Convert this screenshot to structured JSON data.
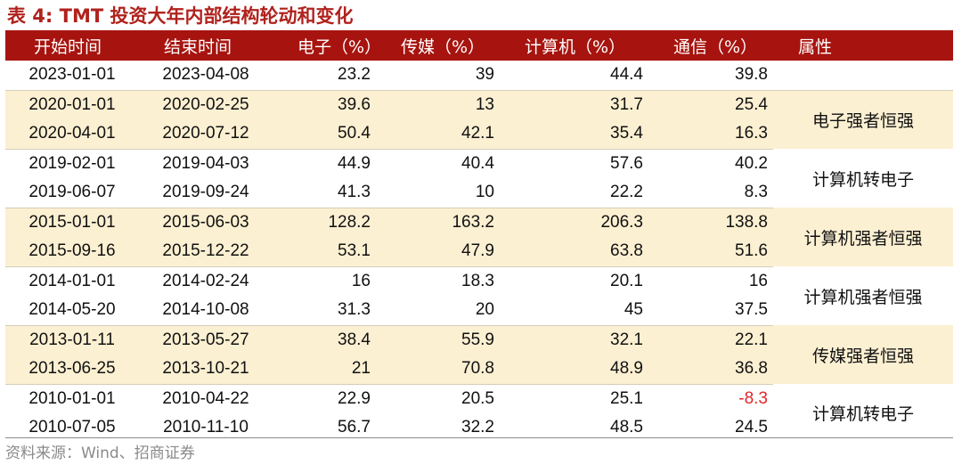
{
  "title": "表 4:  TMT 投资大年内部结构轮动和变化",
  "headers": [
    "开始时间",
    "结束时间",
    "电子（%）",
    "传媒（%）",
    "计算机（%）",
    "通信（%）",
    "属性"
  ],
  "rows": [
    {
      "start": "2023-01-01",
      "end": "2023-04-08",
      "elec": "23.2",
      "media": "39",
      "comp": "44.4",
      "tele": "39.8"
    },
    {
      "start": "2020-01-01",
      "end": "2020-02-25",
      "elec": "39.6",
      "media": "13",
      "comp": "31.7",
      "tele": "25.4"
    },
    {
      "start": "2020-04-01",
      "end": "2020-07-12",
      "elec": "50.4",
      "media": "42.1",
      "comp": "35.4",
      "tele": "16.3"
    },
    {
      "start": "2019-02-01",
      "end": "2019-04-03",
      "elec": "44.9",
      "media": "40.4",
      "comp": "57.6",
      "tele": "40.2"
    },
    {
      "start": "2019-06-07",
      "end": "2019-09-24",
      "elec": "41.3",
      "media": "10",
      "comp": "22.2",
      "tele": "8.3"
    },
    {
      "start": "2015-01-01",
      "end": "2015-06-03",
      "elec": "128.2",
      "media": "163.2",
      "comp": "206.3",
      "tele": "138.8"
    },
    {
      "start": "2015-09-16",
      "end": "2015-12-22",
      "elec": "53.1",
      "media": "47.9",
      "comp": "63.8",
      "tele": "51.6"
    },
    {
      "start": "2014-01-01",
      "end": "2014-02-24",
      "elec": "16",
      "media": "18.3",
      "comp": "20.1",
      "tele": "16"
    },
    {
      "start": "2014-05-20",
      "end": "2014-10-08",
      "elec": "31.3",
      "media": "20",
      "comp": "45",
      "tele": "37.5"
    },
    {
      "start": "2013-01-11",
      "end": "2013-05-27",
      "elec": "38.4",
      "media": "55.9",
      "comp": "32.1",
      "tele": "22.1"
    },
    {
      "start": "2013-06-25",
      "end": "2013-10-21",
      "elec": "21",
      "media": "70.8",
      "comp": "48.9",
      "tele": "36.8"
    },
    {
      "start": "2010-01-01",
      "end": "2010-04-22",
      "elec": "22.9",
      "media": "20.5",
      "comp": "25.1",
      "tele": "-8.3"
    },
    {
      "start": "2010-07-05",
      "end": "2010-11-10",
      "elec": "56.7",
      "media": "32.2",
      "comp": "48.5",
      "tele": "24.5"
    }
  ],
  "attributes": [
    "电子强者恒强",
    "计算机转电子",
    "计算机强者恒强",
    "计算机强者恒强",
    "传媒强者恒强",
    "计算机转电子"
  ],
  "colors": {
    "header_bg": "#a7140f",
    "title": "#b0221d",
    "alt_row_bg": "#fcf0d2",
    "negative": "#e5262a"
  },
  "source": "资料来源：Wind、招商证券"
}
